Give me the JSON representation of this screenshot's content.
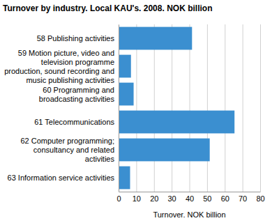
{
  "chart_data": {
    "type": "bar",
    "orientation": "horizontal",
    "title": "Turnover by industry. Local KAU's. 2008. NOK billion",
    "x_label": "Turnover. NOK billion",
    "categories": [
      "58 Publishing activities",
      "59 Motion picture, video and television programme production, sound recording and music publishing activities",
      "60 Programming and broadcasting activities",
      "61 Telecommunications",
      "62 Computer programming; consultancy and related activities",
      "63 Information service activities"
    ],
    "values": [
      41.5,
      7,
      8.5,
      65.5,
      51.5,
      6.5
    ],
    "color": "#3b8fd0",
    "xlim": [
      0,
      80
    ],
    "xticks": [
      0,
      10,
      20,
      30,
      40,
      50,
      60,
      70,
      80
    ],
    "grid": true
  }
}
